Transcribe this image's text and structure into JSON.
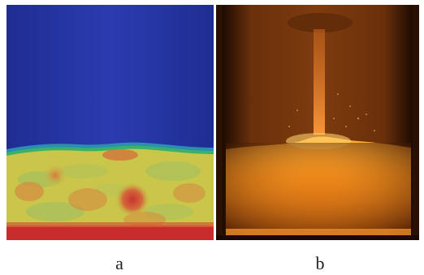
{
  "panels": [
    {
      "id": "a",
      "label": "a",
      "description_icon": "cfd-simulation-contour-image"
    },
    {
      "id": "b",
      "label": "b",
      "description_icon": "experimental-photograph-image"
    }
  ],
  "colors": {
    "sim_background_blue": "#2636a6",
    "sim_interface_green": "#39b25a",
    "sim_bed_yellow": "#c9c64a",
    "sim_bed_orange": "#d07a3a",
    "sim_bed_red": "#c8342e",
    "photo_dark": "#2a0f03",
    "photo_glow": "#ff9a1f"
  }
}
